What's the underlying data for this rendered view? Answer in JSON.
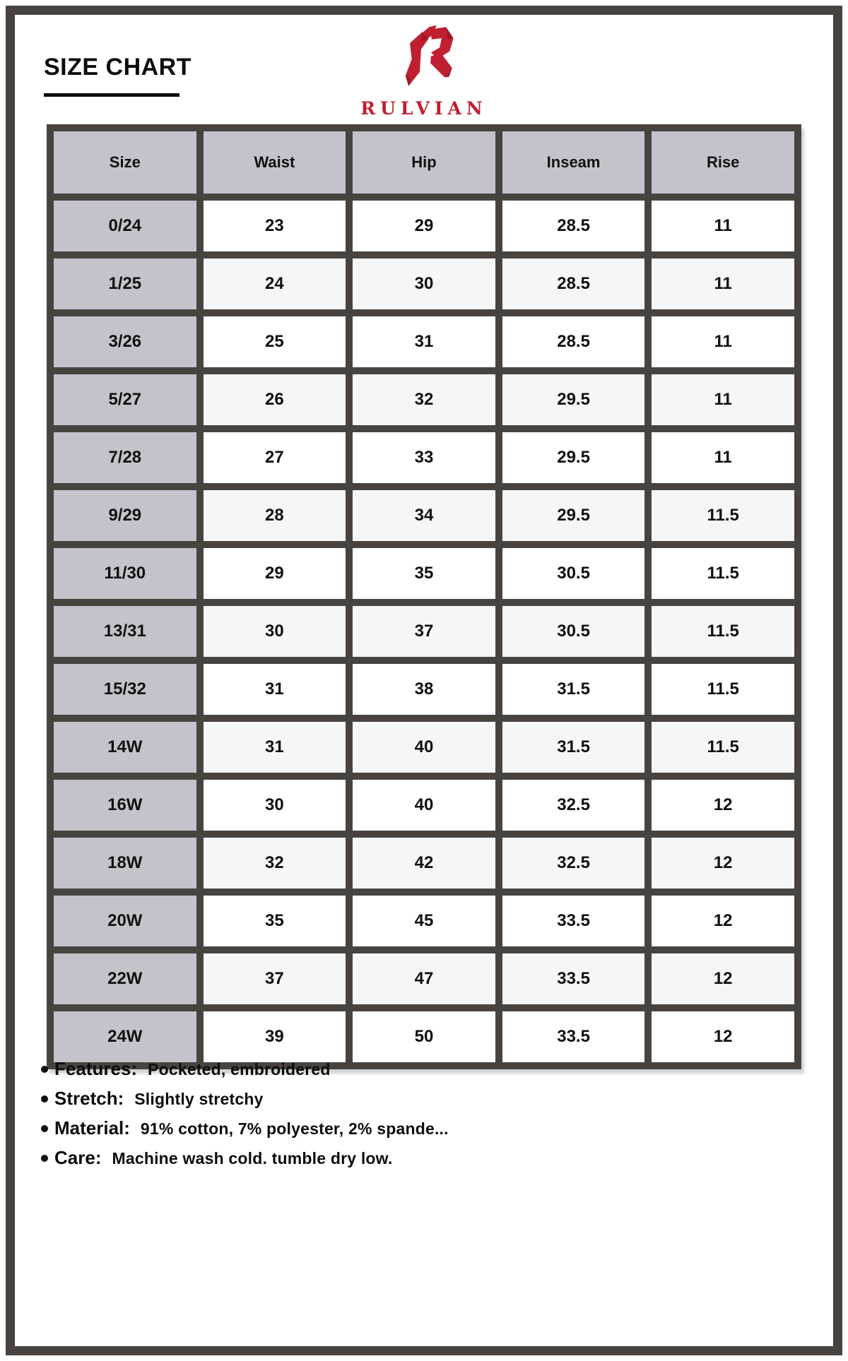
{
  "page": {
    "title": "SIZE CHART"
  },
  "brand": {
    "wordmark": "RULVIAN",
    "logo_icon": "angular-r-monogram"
  },
  "chart_data": {
    "type": "table",
    "title": "SIZE CHART",
    "columns": [
      "Size",
      "Waist",
      "Hip",
      "Inseam",
      "Rise"
    ],
    "rows": [
      [
        "0/24",
        "23",
        "29",
        "28.5",
        "11"
      ],
      [
        "1/25",
        "24",
        "30",
        "28.5",
        "11"
      ],
      [
        "3/26",
        "25",
        "31",
        "28.5",
        "11"
      ],
      [
        "5/27",
        "26",
        "32",
        "29.5",
        "11"
      ],
      [
        "7/28",
        "27",
        "33",
        "29.5",
        "11"
      ],
      [
        "9/29",
        "28",
        "34",
        "29.5",
        "11.5"
      ],
      [
        "11/30",
        "29",
        "35",
        "30.5",
        "11.5"
      ],
      [
        "13/31",
        "30",
        "37",
        "30.5",
        "11.5"
      ],
      [
        "15/32",
        "31",
        "38",
        "31.5",
        "11.5"
      ],
      [
        "14W",
        "31",
        "40",
        "31.5",
        "11.5"
      ],
      [
        "16W",
        "30",
        "40",
        "32.5",
        "12"
      ],
      [
        "18W",
        "32",
        "42",
        "32.5",
        "12"
      ],
      [
        "20W",
        "35",
        "45",
        "33.5",
        "12"
      ],
      [
        "22W",
        "37",
        "47",
        "33.5",
        "12"
      ],
      [
        "24W",
        "39",
        "50",
        "33.5",
        "12"
      ]
    ]
  },
  "details": [
    {
      "label": "Features:",
      "value": "Pocketed, embroidered"
    },
    {
      "label": "Stretch:",
      "value": "Slightly stretchy"
    },
    {
      "label": "Material:",
      "value": "91% cotton, 7% polyester, 2% spande..."
    },
    {
      "label": "Care:",
      "value": "Machine wash cold. tumble dry low."
    }
  ],
  "colors": {
    "accent_red": "#C01F31",
    "accent_red_dark": "#9B1827",
    "grid_frame": "#494340",
    "header_cell_bg": "#C5C2CC",
    "row_alt_bg": "#F6F6F6"
  }
}
